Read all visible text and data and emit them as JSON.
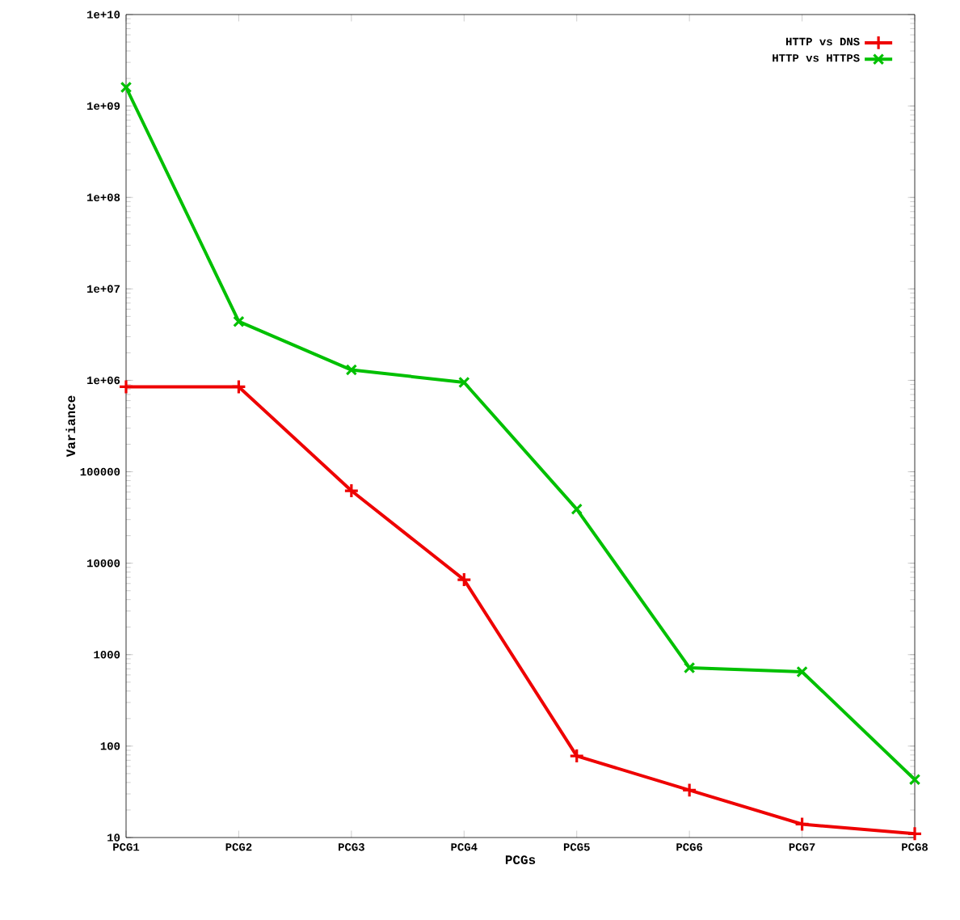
{
  "chart_data": {
    "type": "line",
    "xlabel": "PCGs",
    "ylabel": "Variance",
    "categories": [
      "PCG1",
      "PCG2",
      "PCG3",
      "PCG4",
      "PCG5",
      "PCG6",
      "PCG7",
      "PCG8"
    ],
    "series": [
      {
        "name": "HTTP vs DNS",
        "color": "#ee0000",
        "marker": "plus",
        "values": [
          850000,
          850000,
          62000,
          6600,
          78,
          33,
          14,
          11
        ]
      },
      {
        "name": "HTTP vs HTTPS",
        "color": "#00c000",
        "marker": "cross",
        "values": [
          1600000000,
          4400000,
          1300000,
          950000,
          39000,
          720,
          650,
          43
        ]
      }
    ],
    "log": "y",
    "ylim": [
      10,
      10000000000
    ],
    "yticks": [
      10,
      100,
      1000,
      10000,
      100000,
      {
        "value": 1000000,
        "label": "1e+06"
      },
      {
        "value": 10000000,
        "label": "1e+07"
      },
      {
        "value": 100000000,
        "label": "1e+08"
      },
      {
        "value": 1000000000,
        "label": "1e+09"
      },
      {
        "value": 10000000000,
        "label": "1e+10"
      }
    ],
    "legend": "top right",
    "line_style": "solid",
    "grid": false
  }
}
